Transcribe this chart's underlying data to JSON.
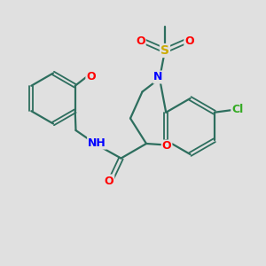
{
  "bg_color": "#e0e0e0",
  "bond_color": "#2d6e5e",
  "N_color": "#0000ff",
  "O_color": "#ff0000",
  "S_color": "#ccaa00",
  "Cl_color": "#33aa22",
  "bond_lw": 1.6,
  "font_size": 9,
  "xlim": [
    0,
    10
  ],
  "ylim": [
    0,
    10
  ]
}
